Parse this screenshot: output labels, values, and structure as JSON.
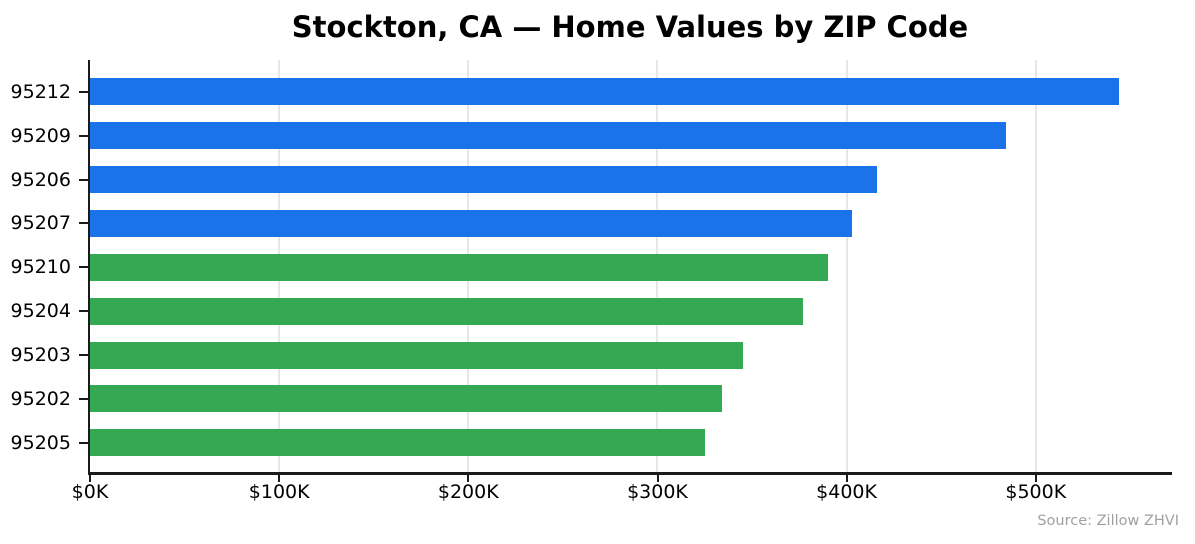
{
  "title": "Stockton, CA — Home Values by ZIP Code",
  "source_caption": "Source: Zillow ZHVI",
  "colors": {
    "blue_bar": "#1a73e8",
    "green_bar": "#34a853",
    "gridline": "#e7e7e7",
    "axis": "#1a1a1a",
    "source_text": "#a0a0a0",
    "background": "#ffffff"
  },
  "chart_data": {
    "type": "bar",
    "orientation": "horizontal",
    "title": "Stockton, CA — Home Values by ZIP Code",
    "xlabel": "",
    "ylabel": "",
    "categories": [
      "95212",
      "95209",
      "95206",
      "95207",
      "95210",
      "95204",
      "95203",
      "95202",
      "95205"
    ],
    "values": [
      544000,
      484000,
      416000,
      403000,
      390000,
      377000,
      345000,
      334000,
      325000
    ],
    "bar_colors": [
      "#1a73e8",
      "#1a73e8",
      "#1a73e8",
      "#1a73e8",
      "#34a853",
      "#34a853",
      "#34a853",
      "#34a853",
      "#34a853"
    ],
    "x_ticks": [
      "$0K",
      "$100K",
      "$200K",
      "$300K",
      "$400K",
      "$500K"
    ],
    "x_tick_values": [
      0,
      100000,
      200000,
      300000,
      400000,
      500000
    ],
    "xlim": [
      0,
      572000
    ],
    "grid": "vertical-only",
    "legend": "none",
    "annotation": "Source: Zillow ZHVI"
  }
}
